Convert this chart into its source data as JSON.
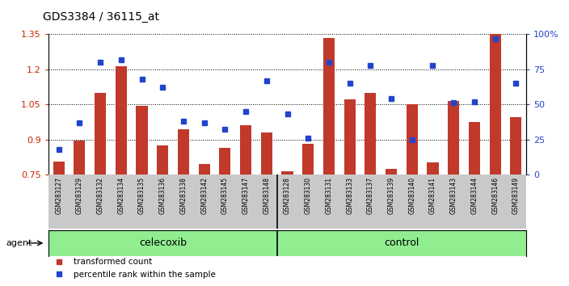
{
  "title": "GDS3384 / 36115_at",
  "samples": [
    "GSM283127",
    "GSM283129",
    "GSM283132",
    "GSM283134",
    "GSM283135",
    "GSM283136",
    "GSM283138",
    "GSM283142",
    "GSM283145",
    "GSM283147",
    "GSM283148",
    "GSM283128",
    "GSM283130",
    "GSM283131",
    "GSM283133",
    "GSM283137",
    "GSM283139",
    "GSM283140",
    "GSM283141",
    "GSM283143",
    "GSM283144",
    "GSM283146",
    "GSM283149"
  ],
  "bar_values": [
    0.805,
    0.895,
    1.1,
    1.215,
    1.045,
    0.875,
    0.945,
    0.795,
    0.865,
    0.96,
    0.93,
    0.762,
    0.88,
    1.335,
    1.07,
    1.1,
    0.775,
    1.05,
    0.8,
    1.065,
    0.975,
    1.355,
    0.995
  ],
  "percentile_values": [
    18,
    37,
    80,
    82,
    68,
    62,
    38,
    37,
    32,
    45,
    67,
    43,
    26,
    80,
    65,
    78,
    54,
    25,
    78,
    51,
    52,
    97,
    65
  ],
  "celecoxib_count": 11,
  "control_count": 12,
  "bar_color": "#c0392b",
  "dot_color": "#2244cc",
  "ylim_left": [
    0.75,
    1.35
  ],
  "ylim_right": [
    0,
    100
  ],
  "yticks_left": [
    0.75,
    0.9,
    1.05,
    1.2,
    1.35
  ],
  "yticks_right": [
    0,
    25,
    50,
    75,
    100
  ],
  "legend_transformed": "transformed count",
  "legend_percentile": "percentile rank within the sample",
  "agent_label": "agent",
  "celecoxib_label": "celecoxib",
  "control_label": "control",
  "agent_bg": "#90ee90",
  "xlabel_bg": "#c8c8c8"
}
